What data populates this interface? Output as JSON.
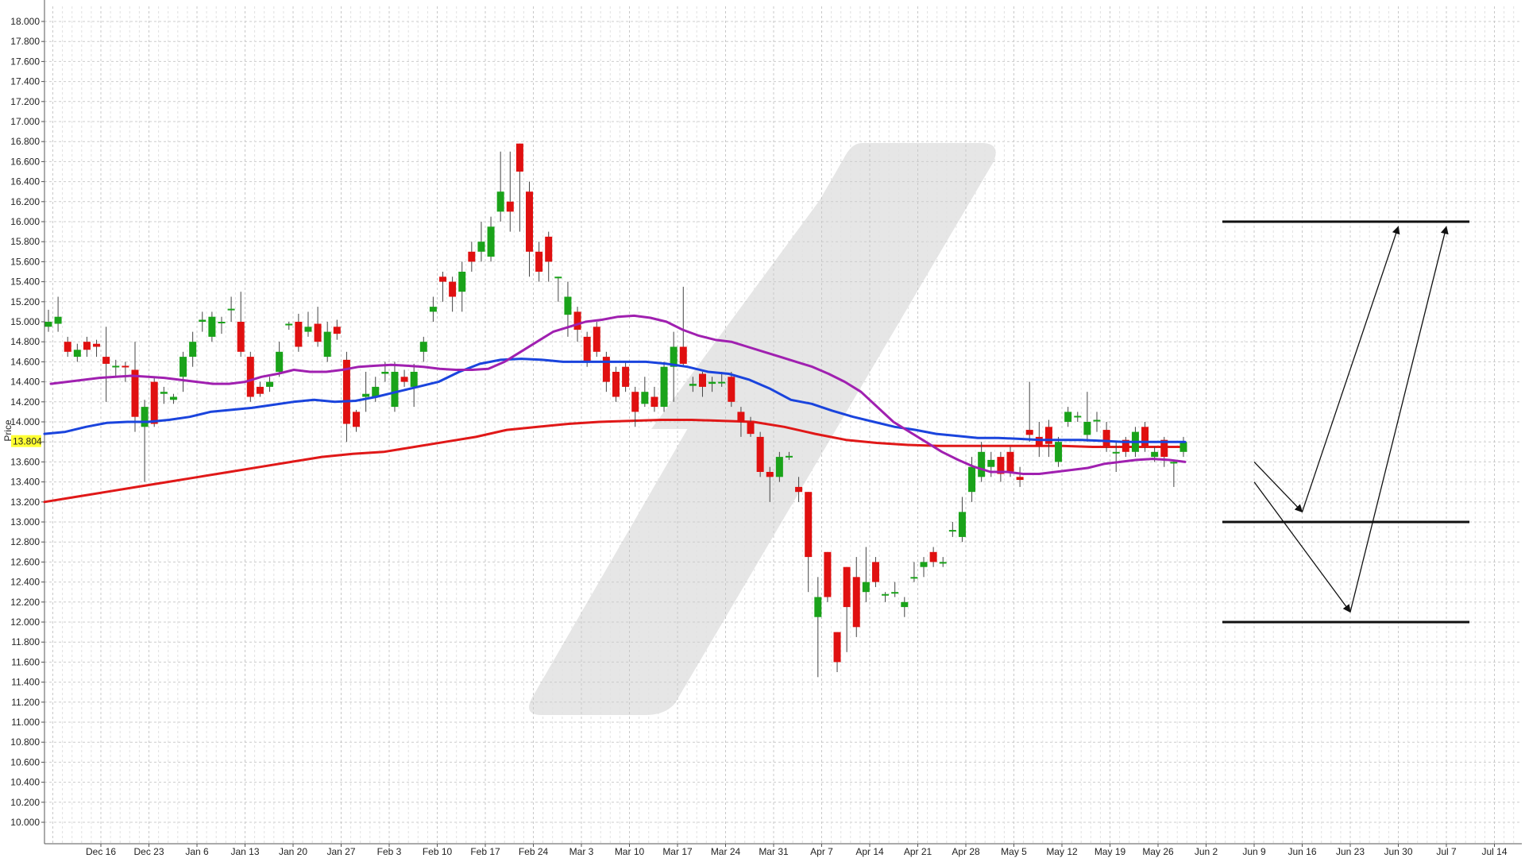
{
  "chart_data": {
    "type": "candlestick",
    "ylabel": "Price",
    "ylim": [
      9.9,
      18.1
    ],
    "y_ticks": [
      "18.000",
      "17.800",
      "17.600",
      "17.400",
      "17.200",
      "17.000",
      "16.800",
      "16.600",
      "16.400",
      "16.200",
      "16.000",
      "15.800",
      "15.600",
      "15.400",
      "15.200",
      "15.000",
      "14.800",
      "14.600",
      "14.400",
      "14.200",
      "14.000",
      "13.800",
      "13.600",
      "13.400",
      "13.200",
      "13.000",
      "12.800",
      "12.600",
      "12.400",
      "12.200",
      "12.000",
      "11.800",
      "11.600",
      "11.400",
      "11.200",
      "11.000",
      "10.800",
      "10.600",
      "10.400",
      "10.200",
      "10.000"
    ],
    "x_ticks": [
      "Dec 16",
      "Dec 23",
      "Jan 6",
      "Jan 13",
      "Jan 20",
      "Jan 27",
      "Feb 3",
      "Feb 10",
      "Feb 17",
      "Feb 24",
      "Mar 3",
      "Mar 10",
      "Mar 17",
      "Mar 24",
      "Mar 31",
      "Apr 7",
      "Apr 14",
      "Apr 21",
      "Apr 28",
      "May 5",
      "May 12",
      "May 19",
      "May 26",
      "Jun 2",
      "Jun 9",
      "Jun 16",
      "Jun 23",
      "Jun 30",
      "Jul 7",
      "Jul 14"
    ],
    "current_price": "13.804",
    "grid": true,
    "colors": {
      "up": "#1aa31a",
      "down": "#e01010",
      "sma_purple": "#a020b0",
      "sma_blue": "#1a44dd",
      "sma_red": "#e01818",
      "price_tag": "#ffff33",
      "grid": "#cccccc",
      "drawing": "#111111"
    },
    "candles": [
      [
        14.95,
        15.0,
        15.12,
        14.9
      ],
      [
        14.98,
        15.05,
        15.25,
        14.9
      ],
      [
        14.8,
        14.7,
        14.85,
        14.65
      ],
      [
        14.65,
        14.72,
        14.78,
        14.6
      ],
      [
        14.8,
        14.72,
        14.85,
        14.65
      ],
      [
        14.78,
        14.75,
        14.82,
        14.65
      ],
      [
        14.65,
        14.58,
        14.95,
        14.2
      ],
      [
        14.55,
        14.56,
        14.62,
        14.45
      ],
      [
        14.56,
        14.55,
        14.6,
        14.4
      ],
      [
        14.52,
        14.05,
        14.8,
        13.9
      ],
      [
        13.95,
        14.15,
        14.22,
        13.4
      ],
      [
        14.4,
        13.98,
        14.45,
        13.95
      ],
      [
        14.28,
        14.3,
        14.35,
        14.18
      ],
      [
        14.22,
        14.25,
        14.28,
        14.18
      ],
      [
        14.45,
        14.65,
        14.7,
        14.3
      ],
      [
        14.65,
        14.8,
        14.9,
        14.55
      ],
      [
        15.0,
        15.02,
        15.1,
        14.9
      ],
      [
        14.85,
        15.05,
        15.1,
        14.8
      ],
      [
        15.0,
        15.0,
        15.05,
        14.88
      ],
      [
        15.12,
        15.13,
        15.25,
        15.0
      ],
      [
        15.0,
        14.7,
        15.3,
        14.65
      ],
      [
        14.65,
        14.25,
        14.7,
        14.2
      ],
      [
        14.35,
        14.28,
        14.4,
        14.25
      ],
      [
        14.35,
        14.4,
        14.45,
        14.3
      ],
      [
        14.5,
        14.7,
        14.8,
        14.45
      ],
      [
        14.98,
        14.98,
        15.0,
        14.92
      ],
      [
        15.0,
        14.75,
        15.08,
        14.7
      ],
      [
        14.9,
        14.95,
        15.1,
        14.85
      ],
      [
        14.98,
        14.8,
        15.15,
        14.75
      ],
      [
        14.65,
        14.9,
        15.0,
        14.6
      ],
      [
        14.95,
        14.88,
        15.02,
        14.82
      ],
      [
        14.62,
        13.98,
        14.7,
        13.8
      ],
      [
        14.1,
        13.95,
        14.12,
        13.9
      ],
      [
        14.25,
        14.28,
        14.5,
        14.1
      ],
      [
        14.25,
        14.35,
        14.45,
        14.2
      ],
      [
        14.48,
        14.5,
        14.6,
        14.4
      ],
      [
        14.15,
        14.5,
        14.6,
        14.1
      ],
      [
        14.45,
        14.4,
        14.52,
        14.35
      ],
      [
        14.35,
        14.5,
        14.58,
        14.15
      ],
      [
        14.7,
        14.8,
        14.85,
        14.6
      ],
      [
        15.1,
        15.15,
        15.25,
        15.0
      ],
      [
        15.45,
        15.4,
        15.5,
        15.2
      ],
      [
        15.4,
        15.25,
        15.45,
        15.1
      ],
      [
        15.3,
        15.5,
        15.6,
        15.1
      ],
      [
        15.7,
        15.6,
        15.8,
        15.5
      ],
      [
        15.7,
        15.8,
        16.0,
        15.6
      ],
      [
        15.65,
        15.95,
        16.05,
        15.6
      ],
      [
        16.1,
        16.3,
        16.7,
        16.0
      ],
      [
        16.2,
        16.1,
        16.7,
        15.9
      ],
      [
        16.78,
        16.5,
        16.78,
        15.9
      ],
      [
        16.3,
        15.7,
        16.4,
        15.45
      ],
      [
        15.7,
        15.5,
        15.8,
        15.4
      ],
      [
        15.85,
        15.6,
        15.9,
        15.4
      ],
      [
        15.45,
        15.45,
        15.45,
        15.2
      ],
      [
        15.07,
        15.25,
        15.4,
        14.85
      ],
      [
        15.1,
        14.92,
        15.15,
        14.8
      ],
      [
        14.85,
        14.6,
        14.9,
        14.55
      ],
      [
        14.95,
        14.7,
        15.0,
        14.65
      ],
      [
        14.65,
        14.4,
        14.7,
        14.3
      ],
      [
        14.5,
        14.25,
        14.55,
        14.2
      ],
      [
        14.55,
        14.35,
        14.6,
        14.3
      ],
      [
        14.3,
        14.1,
        14.35,
        13.95
      ],
      [
        14.18,
        14.3,
        14.45,
        14.15
      ],
      [
        14.25,
        14.15,
        14.35,
        14.1
      ],
      [
        14.15,
        14.55,
        14.6,
        14.1
      ],
      [
        14.55,
        14.75,
        14.9,
        14.2
      ],
      [
        14.75,
        14.58,
        15.35,
        14.55
      ],
      [
        14.36,
        14.38,
        14.45,
        14.3
      ],
      [
        14.48,
        14.35,
        14.5,
        14.25
      ],
      [
        14.38,
        14.4,
        14.45,
        14.3
      ],
      [
        14.4,
        14.4,
        14.5,
        14.35
      ],
      [
        14.45,
        14.2,
        14.5,
        14.15
      ],
      [
        14.1,
        14.0,
        14.15,
        13.85
      ],
      [
        14.0,
        13.88,
        14.05,
        13.85
      ],
      [
        13.85,
        13.5,
        13.9,
        13.45
      ],
      [
        13.5,
        13.45,
        13.55,
        13.2
      ],
      [
        13.45,
        13.65,
        13.7,
        13.4
      ],
      [
        13.66,
        13.66,
        13.7,
        13.62
      ],
      [
        13.35,
        13.3,
        13.45,
        13.2
      ],
      [
        13.3,
        12.65,
        13.3,
        12.3
      ],
      [
        12.05,
        12.25,
        12.45,
        11.45
      ],
      [
        12.7,
        12.25,
        12.7,
        12.2
      ],
      [
        11.9,
        11.6,
        11.9,
        11.5
      ],
      [
        12.55,
        12.15,
        12.55,
        11.7
      ],
      [
        12.45,
        11.95,
        12.65,
        11.85
      ],
      [
        12.3,
        12.4,
        12.75,
        12.2
      ],
      [
        12.6,
        12.4,
        12.65,
        12.35
      ],
      [
        12.27,
        12.28,
        12.3,
        12.2
      ],
      [
        12.3,
        12.3,
        12.4,
        12.25
      ],
      [
        12.15,
        12.2,
        12.25,
        12.05
      ],
      [
        12.45,
        12.45,
        12.6,
        12.4
      ],
      [
        12.55,
        12.6,
        12.65,
        12.45
      ],
      [
        12.7,
        12.6,
        12.75,
        12.55
      ],
      [
        12.6,
        12.6,
        12.65,
        12.55
      ],
      [
        12.92,
        12.92,
        13.0,
        12.85
      ],
      [
        12.85,
        13.1,
        13.25,
        12.8
      ],
      [
        13.3,
        13.55,
        13.65,
        13.2
      ],
      [
        13.45,
        13.7,
        13.8,
        13.4
      ],
      [
        13.55,
        13.62,
        13.7,
        13.45
      ],
      [
        13.65,
        13.48,
        13.7,
        13.4
      ],
      [
        13.7,
        13.5,
        13.75,
        13.45
      ],
      [
        13.45,
        13.42,
        13.55,
        13.35
      ],
      [
        13.92,
        13.87,
        14.4,
        13.8
      ],
      [
        13.85,
        13.75,
        14.0,
        13.65
      ],
      [
        13.95,
        13.78,
        14.02,
        13.65
      ],
      [
        13.6,
        13.8,
        13.85,
        13.55
      ],
      [
        14.0,
        14.1,
        14.15,
        13.95
      ],
      [
        14.05,
        14.06,
        14.1,
        14.0
      ],
      [
        13.87,
        14.0,
        14.3,
        13.8
      ],
      [
        14.02,
        14.02,
        14.1,
        13.9
      ],
      [
        13.92,
        13.75,
        14.0,
        13.7
      ],
      [
        13.7,
        13.7,
        13.8,
        13.5
      ],
      [
        13.82,
        13.7,
        13.85,
        13.65
      ],
      [
        13.7,
        13.9,
        13.95,
        13.65
      ],
      [
        13.95,
        13.75,
        14.0,
        13.7
      ],
      [
        13.65,
        13.7,
        13.75,
        13.6
      ],
      [
        13.82,
        13.65,
        13.85,
        13.55
      ],
      [
        13.6,
        13.6,
        13.62,
        13.35
      ],
      [
        13.7,
        13.8,
        13.85,
        13.65
      ]
    ],
    "sma_purple": [
      14.38,
      14.4,
      14.42,
      14.44,
      14.45,
      14.46,
      14.45,
      14.44,
      14.42,
      14.4,
      14.38,
      14.38,
      14.4,
      14.45,
      14.48,
      14.52,
      14.5,
      14.5,
      14.52,
      14.55,
      14.56,
      14.57,
      14.56,
      14.55,
      14.53,
      14.52,
      14.52,
      14.53,
      14.6,
      14.7,
      14.8,
      14.9,
      14.95,
      15.0,
      15.02,
      15.05,
      15.06,
      15.04,
      15.0,
      14.92,
      14.86,
      14.82,
      14.8,
      14.75,
      14.7,
      14.65,
      14.6,
      14.55,
      14.48,
      14.4,
      14.3,
      14.15,
      14.0,
      13.9,
      13.8,
      13.7,
      13.62,
      13.55,
      13.5,
      13.5,
      13.48,
      13.48,
      13.5,
      13.52,
      13.54,
      13.58,
      13.6,
      13.62,
      13.63,
      13.62,
      13.6
    ],
    "sma_blue": [
      13.88,
      13.9,
      13.95,
      13.99,
      14.0,
      14.0,
      14.02,
      14.05,
      14.1,
      14.12,
      14.14,
      14.17,
      14.2,
      14.22,
      14.2,
      14.21,
      14.25,
      14.3,
      14.35,
      14.4,
      14.5,
      14.58,
      14.62,
      14.63,
      14.62,
      14.6,
      14.6,
      14.6,
      14.6,
      14.6,
      14.58,
      14.55,
      14.5,
      14.48,
      14.42,
      14.33,
      14.22,
      14.18,
      14.11,
      14.05,
      14.0,
      13.95,
      13.92,
      13.88,
      13.86,
      13.84,
      13.84,
      13.83,
      13.82,
      13.82,
      13.82,
      13.81,
      13.8,
      13.8,
      13.8,
      13.8
    ],
    "sma_red": [
      13.2,
      13.25,
      13.3,
      13.35,
      13.4,
      13.45,
      13.5,
      13.55,
      13.6,
      13.65,
      13.68,
      13.7,
      13.75,
      13.8,
      13.85,
      13.92,
      13.95,
      13.98,
      14.0,
      14.01,
      14.02,
      14.02,
      14.01,
      14.0,
      13.95,
      13.88,
      13.82,
      13.79,
      13.77,
      13.76,
      13.76,
      13.76,
      13.76,
      13.76,
      13.75,
      13.75,
      13.75,
      13.75
    ],
    "levels": [
      16.0,
      13.0,
      12.0
    ],
    "arrows": [
      [
        [
          "Jun 9",
          13.6
        ],
        [
          "Jun 16",
          13.1
        ]
      ],
      [
        [
          "Jun 9",
          13.4
        ],
        [
          "Jun 23",
          12.1
        ]
      ],
      [
        [
          "Jun 16",
          13.1
        ],
        [
          "Jun 30",
          15.95
        ]
      ],
      [
        [
          "Jun 23",
          12.1
        ],
        [
          "Jul 7",
          15.95
        ]
      ]
    ]
  }
}
